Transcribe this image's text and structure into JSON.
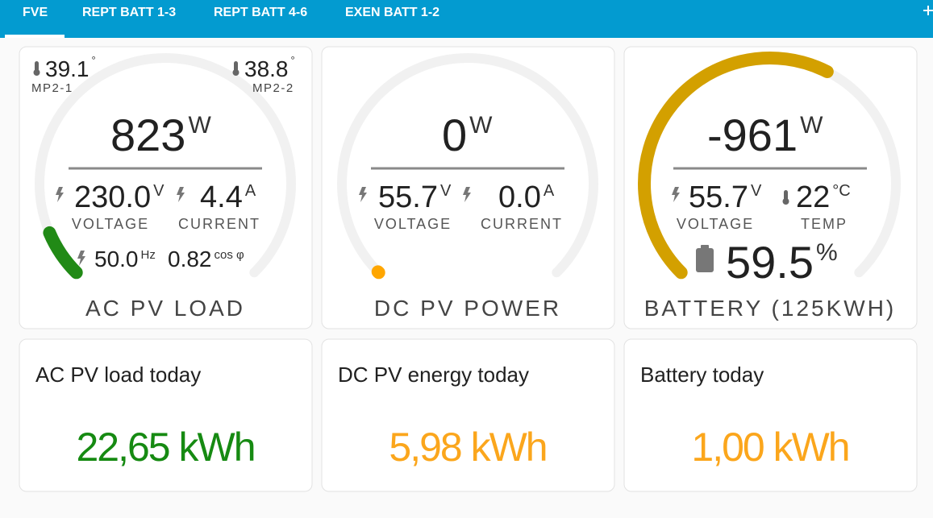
{
  "tabs": [
    "FVE",
    "REPT BATT 1-3",
    "REPT BATT 4-6",
    "EXEN BATT 1-2"
  ],
  "gauges": [
    {
      "temps": [
        {
          "value": "39.1",
          "unit": "°",
          "label": "MP2-1"
        },
        {
          "value": "38.8",
          "unit": "°",
          "label": "MP2-2"
        }
      ],
      "main": {
        "value": "823",
        "unit": "W"
      },
      "voltage": {
        "value": "230.0",
        "unit": "V",
        "label": "VOLTAGE"
      },
      "current": {
        "value": "4.4",
        "unit": "A",
        "label": "CURRENT"
      },
      "frequency": {
        "value": "50.0",
        "unit": "Hz"
      },
      "power_factor": {
        "value": "0.82",
        "unit": "cos φ"
      },
      "title": "AC PV LOAD"
    },
    {
      "main": {
        "value": "0",
        "unit": "W"
      },
      "voltage": {
        "value": "55.7",
        "unit": "V",
        "label": "VOLTAGE"
      },
      "current": {
        "value": "0.0",
        "unit": "A",
        "label": "CURRENT"
      },
      "title": "DC PV POWER"
    },
    {
      "main": {
        "value": "-961",
        "unit": "W"
      },
      "voltage": {
        "value": "55.7",
        "unit": "V",
        "label": "VOLTAGE"
      },
      "temperature": {
        "value": "22",
        "unit": "°C",
        "label": "TEMP"
      },
      "soc": {
        "value": "59.5",
        "unit": "%"
      },
      "title": "BATTERY (125KWH)"
    }
  ],
  "tiles": [
    {
      "title": "AC PV load today",
      "value": "22,65 kWh"
    },
    {
      "title": "DC PV energy today",
      "value": "5,98 kWh"
    },
    {
      "title": "Battery today",
      "value": "1,00 kWh"
    }
  ]
}
